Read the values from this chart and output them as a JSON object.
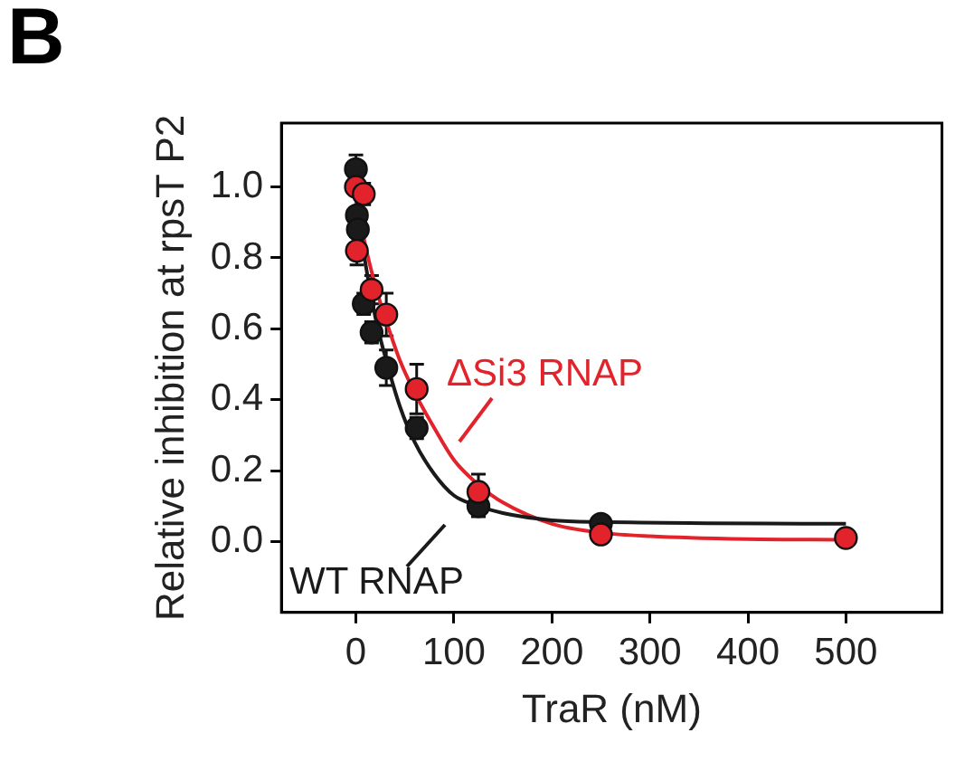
{
  "chart_data": {
    "type": "scatter",
    "annotations": [
      "B"
    ],
    "xlabel": "TraR (nM)",
    "ylabel": "Relative inhibition at rpsT P2",
    "xlim": [
      -76,
      598
    ],
    "ylim": [
      -0.2,
      1.18
    ],
    "xticks": [
      0,
      100,
      200,
      300,
      400,
      500
    ],
    "yticks": [
      {
        "value": 0,
        "label": "0.0"
      },
      {
        "value": 0.2,
        "label": "0.2"
      },
      {
        "value": 0.4,
        "label": "0.4"
      },
      {
        "value": 0.6,
        "label": "0.6"
      },
      {
        "value": 0.8,
        "label": "0.8"
      },
      {
        "value": 1,
        "label": "1.0"
      }
    ],
    "grid": false,
    "marker": "circle",
    "series": [
      {
        "type": "line",
        "color": "#1a1a1a",
        "marker": "none",
        "x": [
          0,
          10,
          20,
          30,
          45,
          60,
          80,
          100,
          125,
          150,
          200,
          250,
          500
        ],
        "values": [
          0.97,
          0.78,
          0.63,
          0.52,
          0.38,
          0.28,
          0.19,
          0.13,
          0.1,
          0.08,
          0.06,
          0.055,
          0.05
        ]
      },
      {
        "type": "line",
        "color": "#e3232b",
        "marker": "none",
        "x": [
          0,
          10,
          20,
          30,
          45,
          60,
          80,
          100,
          125,
          150,
          200,
          250,
          300,
          400,
          500
        ],
        "values": [
          0.97,
          0.83,
          0.72,
          0.63,
          0.51,
          0.42,
          0.32,
          0.23,
          0.16,
          0.11,
          0.05,
          0.025,
          0.015,
          0.007,
          0.005
        ]
      },
      {
        "name": "WT RNAP",
        "color": "#1a1a1a",
        "x": [
          0,
          1,
          2,
          8,
          16,
          31,
          62,
          125,
          250
        ],
        "values": [
          1.05,
          0.92,
          0.88,
          0.67,
          0.59,
          0.49,
          0.32,
          0.1,
          0.05
        ],
        "errors": [
          0.04,
          null,
          null,
          0.03,
          0.03,
          0.05,
          0.03,
          0.03,
          null
        ]
      },
      {
        "name": "ΔSi3 RNAP",
        "color": "#e3232b",
        "x": [
          0,
          1,
          8,
          16,
          31,
          62,
          125,
          250,
          500
        ],
        "values": [
          1.0,
          0.82,
          0.98,
          0.71,
          0.64,
          0.43,
          0.14,
          0.02,
          0.01
        ],
        "errors": [
          null,
          0.04,
          0.03,
          0.04,
          0.06,
          0.07,
          0.05,
          null,
          null
        ]
      }
    ]
  }
}
